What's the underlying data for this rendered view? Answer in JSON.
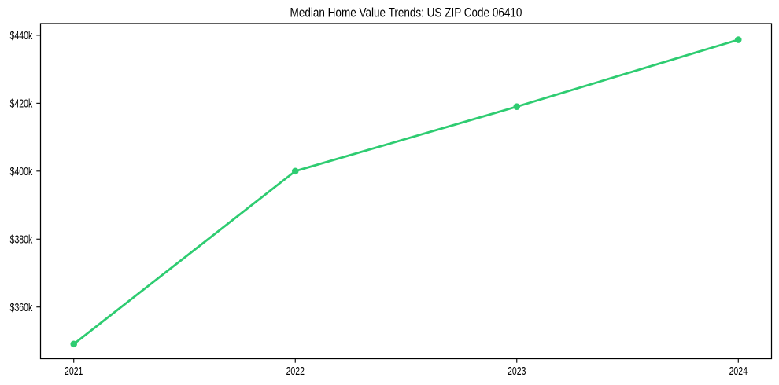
{
  "window": {
    "background_color": "#ffffff"
  },
  "chart_data": {
    "type": "line",
    "title": "Median Home Value Trends: US ZIP Code 06410",
    "xlabel": "",
    "ylabel": "",
    "x": [
      2021,
      2022,
      2023,
      2024
    ],
    "series": [
      {
        "name": "Median Home Value",
        "values": [
          349100,
          400000,
          419000,
          438700
        ],
        "color": "#2ecc71",
        "marker": "circle",
        "line_width": 2.8,
        "marker_radius": 4.3
      }
    ],
    "x_ticks": [
      2021,
      2022,
      2023,
      2024
    ],
    "x_tick_labels": [
      "2021",
      "2022",
      "2023",
      "2024"
    ],
    "y_ticks": [
      360000,
      380000,
      400000,
      420000,
      440000
    ],
    "y_tick_labels": [
      "$360k",
      "$380k",
      "$400k",
      "$420k",
      "$440k"
    ],
    "xlim": [
      2020.85,
      2024.15
    ],
    "ylim": [
      344780,
      443450
    ],
    "grid": false,
    "legend": false,
    "plot_border": true,
    "border_color": "#000000",
    "text_color": "#000000"
  }
}
